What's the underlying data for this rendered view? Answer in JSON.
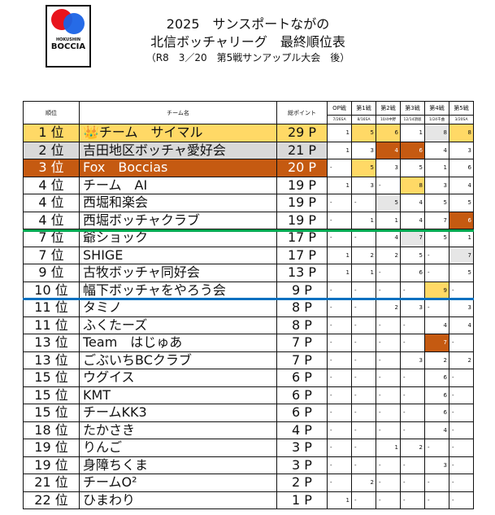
{
  "logo": {
    "line1": "HOKUSHIN",
    "line2": "BOCCIA"
  },
  "title": {
    "line1": "2025　サンスポートながの",
    "line2": "北信ボッチャリーグ　最終順位表",
    "line3": "（R8　3／20　第5戦サンアップル大会　後）"
  },
  "headers": {
    "rank": "順位",
    "team": "チーム名",
    "points": "総ポイント",
    "rounds": [
      "OP戦",
      "第1戦",
      "第2戦",
      "第3戦",
      "第4戦",
      "第5戦"
    ],
    "dates": [
      "7/26SA",
      "8/16SA",
      "10/4中野",
      "12/14須坂",
      "1/24千曲",
      "3/20SA"
    ]
  },
  "colors": {
    "gold": "#FFD966",
    "silver": "#D9D9D9",
    "bronze": "#C55A11",
    "green_line": "#00A850",
    "blue_line": "#0070C0"
  },
  "rows": [
    {
      "rank": "1 位",
      "team": "👑チーム　サイマル",
      "points": "29 P",
      "scores": [
        "1",
        "5",
        "6",
        "1",
        "8",
        "8"
      ],
      "hl": [
        "",
        "gold",
        "gold",
        "",
        "lgray",
        "gold"
      ],
      "row": "gold"
    },
    {
      "rank": "2 位",
      "team": "吉田地区ボッチャ愛好会",
      "points": "21 P",
      "scores": [
        "1",
        "3",
        "4",
        "6",
        "4",
        "3"
      ],
      "hl": [
        "",
        "",
        "orange",
        "orange",
        "",
        ""
      ],
      "row": "gray"
    },
    {
      "rank": "3 位",
      "team": "Fox　Boccias",
      "points": "20 P",
      "scores": [
        "-",
        "5",
        "3",
        "5",
        "1",
        "6"
      ],
      "hl": [
        "",
        "gold",
        "",
        "",
        "",
        ""
      ],
      "row": "orange"
    },
    {
      "rank": "4 位",
      "team": "チーム　AI",
      "points": "19 P",
      "scores": [
        "1",
        "3",
        "-",
        "8",
        "3",
        "4"
      ],
      "hl": [
        "",
        "",
        "",
        "gold",
        "",
        ""
      ],
      "row": ""
    },
    {
      "rank": "4 位",
      "team": "西堀和楽会",
      "points": "19 P",
      "scores": [
        "-",
        "-",
        "5",
        "4",
        "5",
        "5"
      ],
      "hl": [
        "",
        "",
        "lgray",
        "",
        "",
        ""
      ],
      "row": ""
    },
    {
      "rank": "4 位",
      "team": "西堀ボッチャクラブ",
      "points": "19 P",
      "scores": [
        "-",
        "1",
        "1",
        "4",
        "7",
        "6"
      ],
      "hl": [
        "",
        "",
        "",
        "",
        "",
        "orange"
      ],
      "row": ""
    },
    {
      "rank": "7 位",
      "team": "爺ショック",
      "points": "17 P",
      "scores": [
        "-",
        "-",
        "4",
        "7",
        "5",
        "1"
      ],
      "hl": [
        "",
        "",
        "",
        "lgray",
        "",
        ""
      ],
      "row": ""
    },
    {
      "rank": "7 位",
      "team": "SHIGE",
      "points": "17 P",
      "scores": [
        "1",
        "2",
        "2",
        "5",
        "-",
        "7"
      ],
      "hl": [
        "",
        "",
        "",
        "",
        "",
        "lgray"
      ],
      "row": ""
    },
    {
      "rank": "9 位",
      "team": "古牧ボッチャ同好会",
      "points": "13 P",
      "scores": [
        "1",
        "1",
        "-",
        "6",
        "-",
        "5"
      ],
      "hl": [
        "",
        "",
        "",
        "",
        "",
        ""
      ],
      "row": ""
    },
    {
      "rank": "10 位",
      "team": "幅下ボッチャをやろう会",
      "points": "9 P",
      "scores": [
        "-",
        "-",
        "-",
        "-",
        "9",
        "-"
      ],
      "hl": [
        "",
        "",
        "",
        "",
        "gold",
        ""
      ],
      "row": ""
    },
    {
      "rank": "11 位",
      "team": "タミノ",
      "points": "8 P",
      "scores": [
        "-",
        "-",
        "2",
        "3",
        "-",
        "3"
      ],
      "hl": [
        "",
        "",
        "",
        "",
        "",
        ""
      ],
      "row": ""
    },
    {
      "rank": "11 位",
      "team": "ふくたーズ",
      "points": "8 P",
      "scores": [
        "-",
        "-",
        "-",
        "-",
        "4",
        "4"
      ],
      "hl": [
        "",
        "",
        "",
        "",
        "",
        ""
      ],
      "row": ""
    },
    {
      "rank": "13 位",
      "team": "Team　はじゅあ",
      "points": "7 P",
      "scores": [
        "-",
        "-",
        "-",
        "-",
        "7",
        "-"
      ],
      "hl": [
        "",
        "",
        "",
        "",
        "orange",
        ""
      ],
      "row": ""
    },
    {
      "rank": "13 位",
      "team": "ごぶいちBCクラブ",
      "points": "7 P",
      "scores": [
        "-",
        "-",
        "-",
        "3",
        "2",
        "2"
      ],
      "hl": [
        "",
        "",
        "",
        "",
        "",
        ""
      ],
      "row": ""
    },
    {
      "rank": "15 位",
      "team": "ウグイス",
      "points": "6 P",
      "scores": [
        "-",
        "-",
        "-",
        "-",
        "6",
        "-"
      ],
      "hl": [
        "",
        "",
        "",
        "",
        "",
        ""
      ],
      "row": ""
    },
    {
      "rank": "15 位",
      "team": "KMT",
      "points": "6 P",
      "scores": [
        "-",
        "-",
        "-",
        "-",
        "6",
        "-"
      ],
      "hl": [
        "",
        "",
        "",
        "",
        "",
        ""
      ],
      "row": ""
    },
    {
      "rank": "15 位",
      "team": "チームKK3",
      "points": "6 P",
      "scores": [
        "-",
        "-",
        "-",
        "-",
        "6",
        "-"
      ],
      "hl": [
        "",
        "",
        "",
        "",
        "",
        ""
      ],
      "row": ""
    },
    {
      "rank": "18 位",
      "team": "たかさき",
      "points": "4 P",
      "scores": [
        "-",
        "-",
        "-",
        "-",
        "4",
        "-"
      ],
      "hl": [
        "",
        "",
        "",
        "",
        "",
        ""
      ],
      "row": ""
    },
    {
      "rank": "19 位",
      "team": "りんご",
      "points": "3 P",
      "scores": [
        "-",
        "-",
        "1",
        "2",
        "-",
        "-"
      ],
      "hl": [
        "",
        "",
        "",
        "",
        "",
        ""
      ],
      "row": ""
    },
    {
      "rank": "19 位",
      "team": "身障ちくま",
      "points": "3 P",
      "scores": [
        "-",
        "-",
        "-",
        "-",
        "3",
        "-"
      ],
      "hl": [
        "",
        "",
        "",
        "",
        "",
        ""
      ],
      "row": ""
    },
    {
      "rank": "21 位",
      "team": "チームO²",
      "points": "2 P",
      "scores": [
        "-",
        "2",
        "-",
        "-",
        "-",
        "-"
      ],
      "hl": [
        "",
        "",
        "",
        "",
        "",
        ""
      ],
      "row": ""
    },
    {
      "rank": "22 位",
      "team": "ひまわり",
      "points": "1 P",
      "scores": [
        "1",
        "-",
        "-",
        "-",
        "-",
        "-"
      ],
      "hl": [
        "",
        "",
        "",
        "",
        "",
        ""
      ],
      "row": ""
    }
  ]
}
